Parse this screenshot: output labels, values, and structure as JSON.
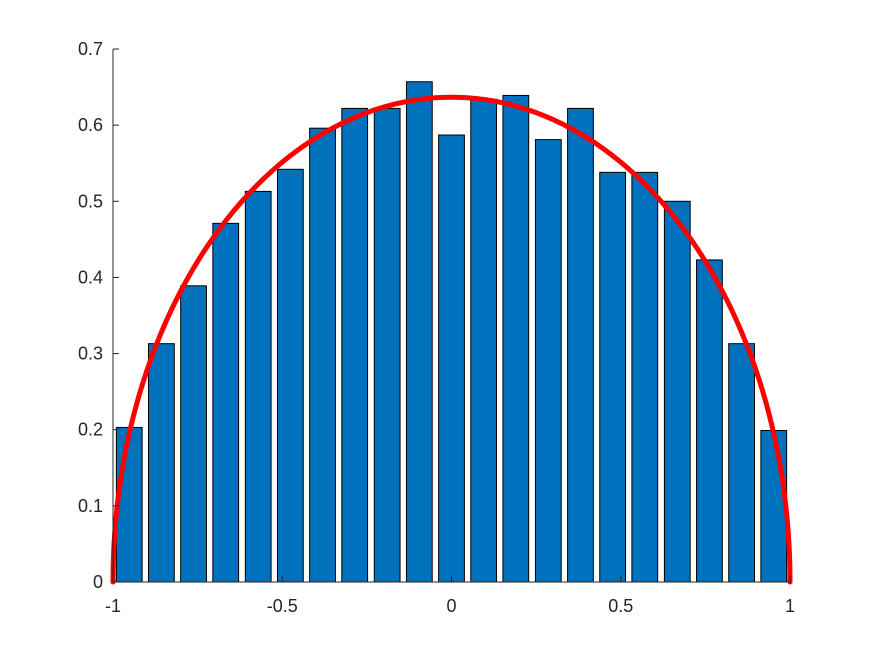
{
  "colors": {
    "bar_fill": "#0072BD",
    "bar_edge": "#000000",
    "curve": "#FF0000",
    "axis": "#262626",
    "background": "#FFFFFF"
  },
  "chart_data": {
    "type": "bar",
    "title": "",
    "xlabel": "",
    "ylabel": "",
    "xlim": [
      -1,
      1
    ],
    "ylim": [
      0,
      0.7
    ],
    "grid": false,
    "bin_width": 0.0952,
    "x_ticks": [
      -1,
      -0.5,
      0,
      0.5,
      1
    ],
    "x_tick_labels": [
      "-1",
      "-0.5",
      "0",
      "0.5",
      "1"
    ],
    "y_ticks": [
      0,
      0.1,
      0.2,
      0.3,
      0.4,
      0.5,
      0.6,
      0.7
    ],
    "y_tick_labels": [
      "0",
      "0.1",
      "0.2",
      "0.3",
      "0.4",
      "0.5",
      "0.6",
      "0.7"
    ],
    "x": [
      -0.952,
      -0.857,
      -0.762,
      -0.667,
      -0.571,
      -0.476,
      -0.381,
      -0.286,
      -0.19,
      -0.095,
      0.0,
      0.095,
      0.19,
      0.286,
      0.381,
      0.476,
      0.571,
      0.667,
      0.762,
      0.857,
      0.952
    ],
    "values": [
      0.203,
      0.313,
      0.389,
      0.471,
      0.513,
      0.542,
      0.596,
      0.622,
      0.622,
      0.657,
      0.587,
      0.634,
      0.639,
      0.581,
      0.622,
      0.538,
      0.538,
      0.5,
      0.423,
      0.313,
      0.199
    ],
    "series": [
      {
        "type": "line",
        "function": "semicircle",
        "formula": "2/pi * sqrt(1 - x^2)",
        "domain": [
          -1,
          1
        ]
      }
    ]
  }
}
